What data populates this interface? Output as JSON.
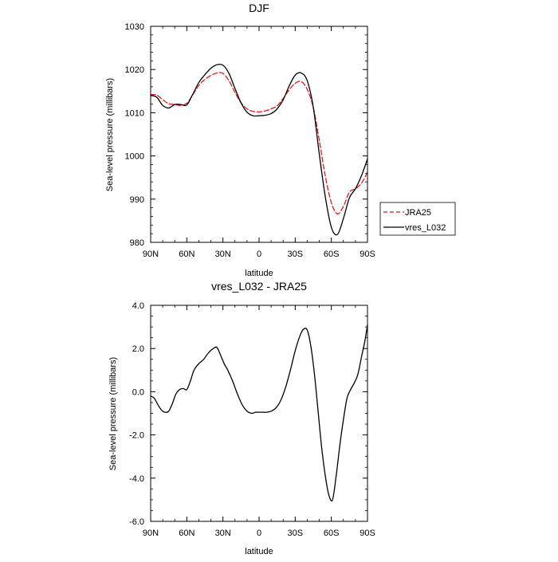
{
  "chart_data": [
    {
      "type": "line",
      "title": "DJF",
      "xlabel": "latitude",
      "ylabel": "Sea-level pressure (millibars)",
      "xlim": [
        90,
        -90
      ],
      "ylim": [
        980,
        1030
      ],
      "x_ticks": [
        {
          "value": 90,
          "label": "90N"
        },
        {
          "value": 60,
          "label": "60N"
        },
        {
          "value": 30,
          "label": "30N"
        },
        {
          "value": 0,
          "label": "0"
        },
        {
          "value": -30,
          "label": "30S"
        },
        {
          "value": -60,
          "label": "60S"
        },
        {
          "value": -90,
          "label": "90S"
        }
      ],
      "y_ticks": [
        {
          "value": 980,
          "label": "980"
        },
        {
          "value": 990,
          "label": "990"
        },
        {
          "value": 1000,
          "label": "1000"
        },
        {
          "value": 1010,
          "label": "1010"
        },
        {
          "value": 1020,
          "label": "1020"
        },
        {
          "value": 1030,
          "label": "1030"
        }
      ],
      "grid": false,
      "legend_placement": "right",
      "series": [
        {
          "name": "JRA25",
          "color": "#e8191c",
          "dash": true,
          "x": [
            90,
            85,
            80,
            75,
            70,
            65,
            60,
            55,
            50,
            45,
            40,
            35,
            30,
            25,
            20,
            15,
            10,
            5,
            0,
            -5,
            -10,
            -15,
            -20,
            -25,
            -30,
            -35,
            -40,
            -45,
            -50,
            -55,
            -60,
            -65,
            -70,
            -75,
            -80,
            -85,
            -90
          ],
          "y": [
            1014.2,
            1014.1,
            1013,
            1012.1,
            1011.9,
            1011.7,
            1012.2,
            1014.2,
            1016.3,
            1017.7,
            1018.6,
            1019.2,
            1019.1,
            1017.4,
            1014.7,
            1012.3,
            1010.9,
            1010.3,
            1010.2,
            1010.4,
            1010.9,
            1011.6,
            1013.3,
            1015.3,
            1016.8,
            1017.2,
            1015.4,
            1011.2,
            1003.6,
            995.3,
            989.2,
            986.6,
            988.3,
            991.6,
            992.4,
            993.7,
            996.2
          ]
        },
        {
          "name": "vres_L032",
          "color": "#000000",
          "dash": false,
          "x": [
            90,
            85,
            80,
            75,
            70,
            65,
            60,
            55,
            50,
            45,
            40,
            35,
            30,
            25,
            20,
            15,
            10,
            5,
            0,
            -5,
            -10,
            -15,
            -20,
            -25,
            -30,
            -35,
            -40,
            -45,
            -50,
            -55,
            -60,
            -65,
            -70,
            -75,
            -80,
            -85,
            -90
          ],
          "y": [
            1014,
            1013.6,
            1011.7,
            1011.1,
            1011.9,
            1011.9,
            1011.8,
            1014.3,
            1017,
            1018.8,
            1020.3,
            1021.1,
            1021,
            1019.1,
            1015.6,
            1012.3,
            1010.1,
            1009.3,
            1009.3,
            1009.4,
            1009.8,
            1010.9,
            1013,
            1016.2,
            1018.7,
            1019.2,
            1017.4,
            1011.3,
            1000.4,
            990.5,
            983.5,
            981.8,
            985.5,
            990.3,
            992.4,
            995.4,
            999.3
          ]
        }
      ]
    },
    {
      "type": "line",
      "title": "vres_L032 - JRA25",
      "xlabel": "latitude",
      "ylabel": "Sea-level pressure (millibars)",
      "xlim": [
        90,
        -90
      ],
      "ylim": [
        -6,
        4
      ],
      "x_ticks": [
        {
          "value": 90,
          "label": "90N"
        },
        {
          "value": 60,
          "label": "60N"
        },
        {
          "value": 30,
          "label": "30N"
        },
        {
          "value": 0,
          "label": "0"
        },
        {
          "value": -30,
          "label": "30S"
        },
        {
          "value": -60,
          "label": "60S"
        },
        {
          "value": -90,
          "label": "90S"
        }
      ],
      "y_ticks": [
        {
          "value": -6,
          "label": "-6.0"
        },
        {
          "value": -4,
          "label": "-4.0"
        },
        {
          "value": -2,
          "label": "-2.0"
        },
        {
          "value": 0,
          "label": "0.0"
        },
        {
          "value": 2,
          "label": "2.0"
        },
        {
          "value": 4,
          "label": "4.0"
        }
      ],
      "grid": false,
      "series": [
        {
          "color": "#000000",
          "dash": false,
          "x": [
            90,
            87,
            84,
            81,
            78,
            75,
            72,
            69,
            66,
            63,
            60,
            57,
            54,
            50,
            46,
            42,
            38,
            35,
            32,
            29,
            26,
            22,
            18,
            14,
            10,
            6,
            3,
            0,
            -3,
            -6,
            -10,
            -14,
            -18,
            -22,
            -26,
            -30,
            -34,
            -37,
            -40,
            -43,
            -46,
            -49,
            -52,
            -55,
            -58,
            -61,
            -64,
            -67,
            -70,
            -73,
            -76,
            -79,
            -82,
            -85,
            -88,
            -90
          ],
          "y": [
            -0.2,
            -0.3,
            -0.6,
            -0.85,
            -0.95,
            -0.9,
            -0.55,
            -0.1,
            0.1,
            0.15,
            0.1,
            0.5,
            1.0,
            1.3,
            1.5,
            1.8,
            2.0,
            2.05,
            1.7,
            1.3,
            1.0,
            0.5,
            -0.1,
            -0.6,
            -0.9,
            -1.0,
            -0.95,
            -0.95,
            -0.95,
            -0.95,
            -0.9,
            -0.75,
            -0.4,
            0.2,
            1.0,
            1.9,
            2.6,
            2.9,
            2.85,
            2.1,
            0.8,
            -0.9,
            -2.6,
            -3.9,
            -4.8,
            -5.0,
            -3.9,
            -2.5,
            -1.3,
            -0.3,
            0.1,
            0.4,
            0.8,
            1.6,
            2.4,
            3.1
          ]
        }
      ]
    }
  ]
}
